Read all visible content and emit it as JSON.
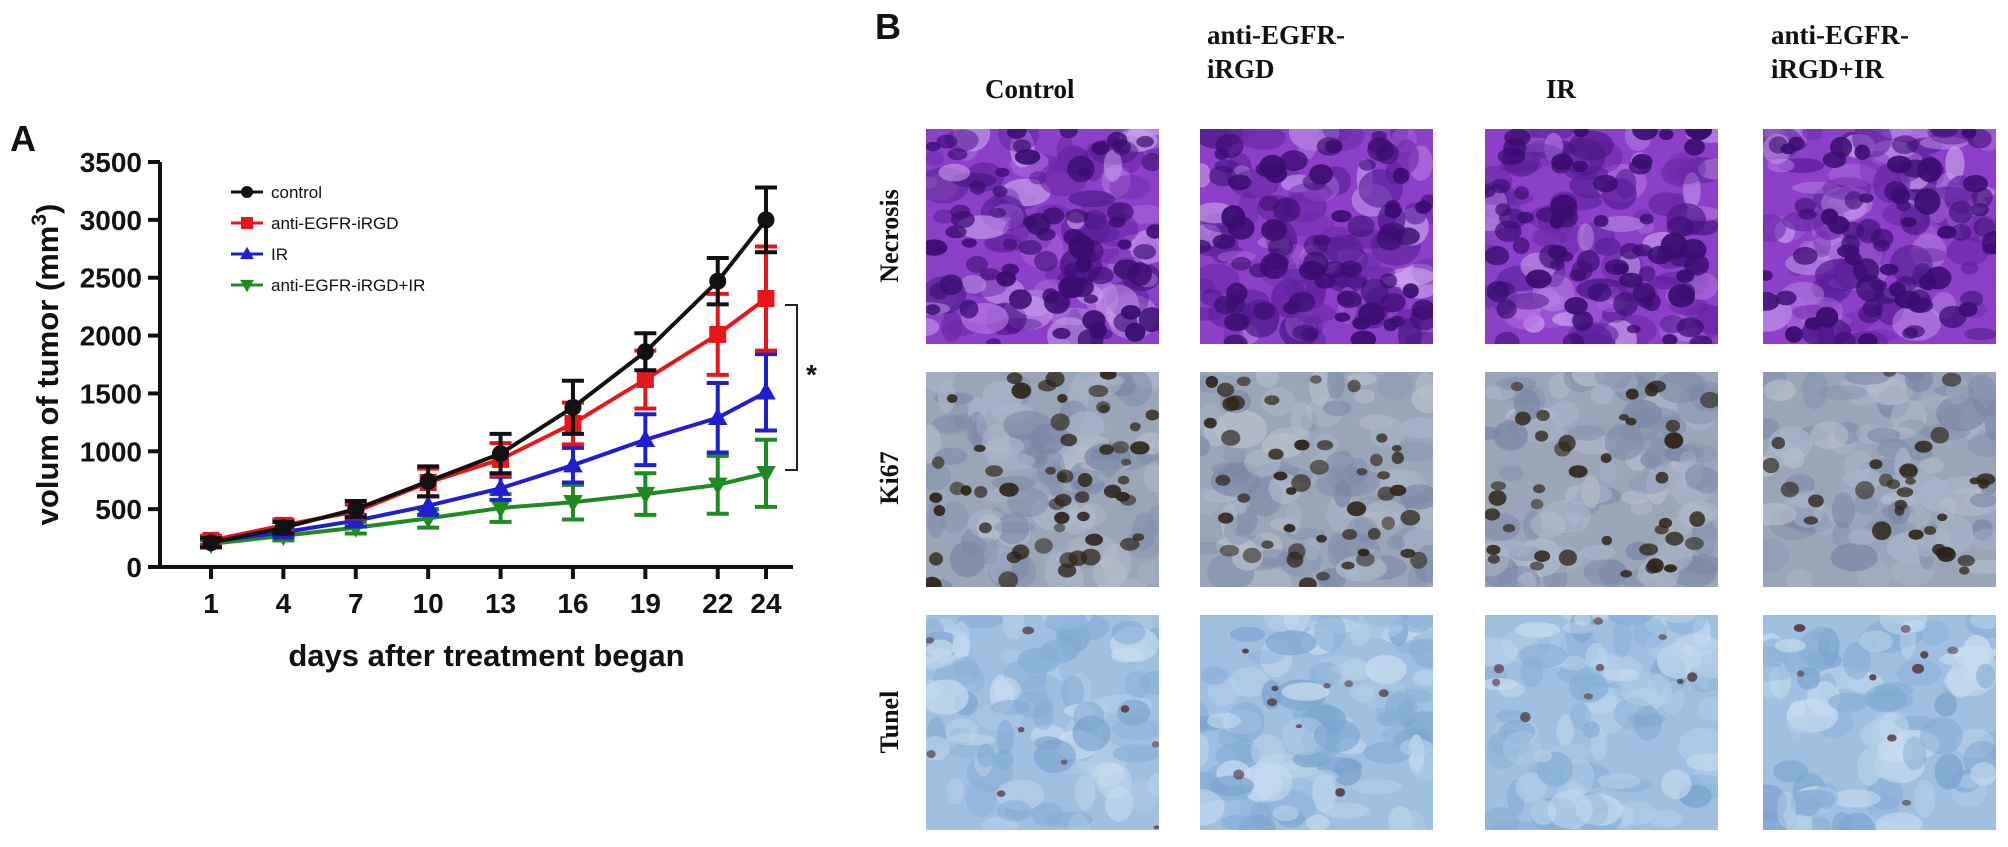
{
  "panel_a": {
    "letter": "A",
    "significance_marker": "*",
    "chart_data": {
      "type": "line",
      "title": "",
      "xlabel": "days after treatment began",
      "ylabel_prefix": "volum of tumor (mm",
      "ylabel_sup": "3",
      "ylabel_suffix": ")",
      "x": [
        1,
        4,
        7,
        10,
        13,
        16,
        19,
        22,
        24
      ],
      "x_tick_labels": [
        "1",
        "4",
        "7",
        "10",
        "13",
        "16",
        "19",
        "22",
        "24"
      ],
      "ylim": [
        0,
        3500
      ],
      "y_ticks": [
        0,
        500,
        1000,
        1500,
        2000,
        2500,
        3000,
        3500
      ],
      "y_tick_labels": [
        "0",
        "500",
        "1000",
        "1500",
        "2000",
        "2500",
        "3000",
        "3500"
      ],
      "grid": false,
      "legend_position": "top-left",
      "series": [
        {
          "name": "control",
          "color": "#111111",
          "marker": "circle",
          "values": [
            210,
            340,
            500,
            740,
            980,
            1380,
            1860,
            2470,
            3000
          ],
          "err": [
            40,
            50,
            70,
            130,
            170,
            230,
            160,
            200,
            280
          ]
        },
        {
          "name": "anti-EGFR-iRGD",
          "color": "#e8161b",
          "marker": "square",
          "values": [
            230,
            360,
            480,
            730,
            930,
            1240,
            1620,
            2010,
            2320
          ],
          "err": [
            40,
            50,
            60,
            120,
            140,
            180,
            250,
            350,
            450
          ]
        },
        {
          "name": "IR",
          "color": "#1f1fd1",
          "marker": "triangle-up",
          "values": [
            220,
            300,
            400,
            530,
            680,
            880,
            1100,
            1290,
            1510
          ],
          "err": [
            30,
            40,
            50,
            80,
            100,
            150,
            220,
            300,
            330
          ]
        },
        {
          "name": "anti-EGFR-iRGD+IR",
          "color": "#1f8a1f",
          "marker": "triangle-down",
          "values": [
            200,
            270,
            340,
            420,
            510,
            560,
            630,
            710,
            810
          ],
          "err": [
            30,
            40,
            50,
            80,
            120,
            150,
            180,
            250,
            290
          ]
        }
      ]
    }
  },
  "panel_b": {
    "letter": "B",
    "columns": [
      "Control",
      "anti-EGFR-\niRGD",
      "IR",
      "anti-EGFR-\niRGD+IR"
    ],
    "rows": [
      {
        "label": "Necrosis",
        "stain": "he"
      },
      {
        "label": "Ki67",
        "stain": "ki67"
      },
      {
        "label": "Tunel",
        "stain": "tunel"
      }
    ]
  }
}
